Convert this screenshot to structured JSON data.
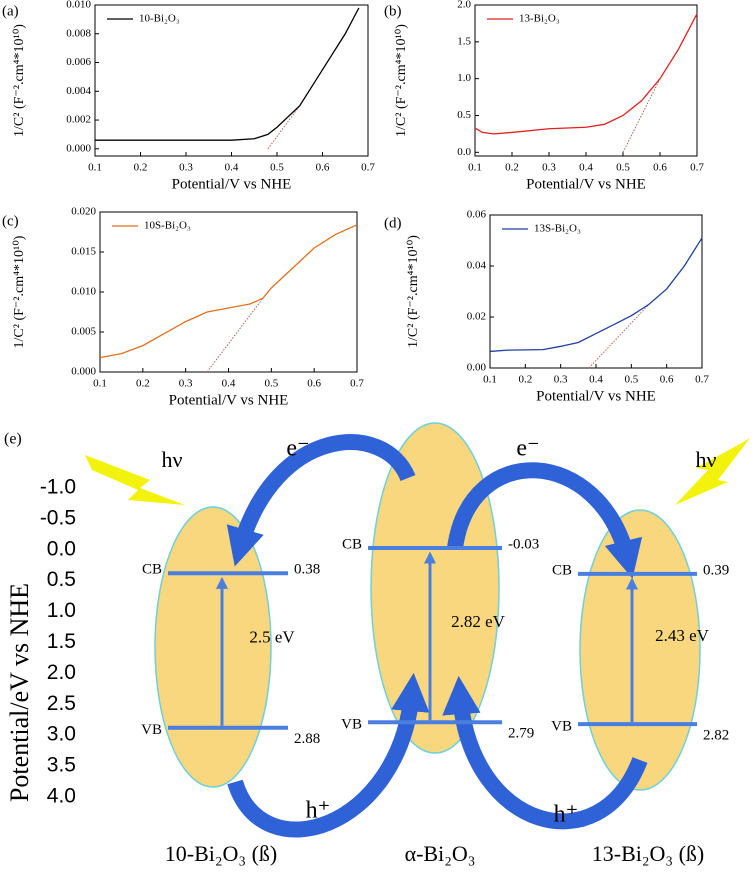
{
  "chart_data": [
    {
      "type": "line",
      "panel": "(a)",
      "xlabel": "Potential/V vs NHE",
      "ylabel": "1/C² (F⁻².cm⁴*10¹⁰)",
      "xlim": [
        0.1,
        0.7
      ],
      "xticks": [
        0.1,
        0.2,
        0.3,
        0.4,
        0.5,
        0.6,
        0.7
      ],
      "ylim": [
        -0.0005,
        0.01
      ],
      "yticks": [
        {
          "value": 0,
          "label": "0.000"
        },
        {
          "value": 0.002,
          "label": "0.002"
        },
        {
          "value": 0.004,
          "label": "0.004"
        },
        {
          "value": 0.006,
          "label": "0.006"
        },
        {
          "value": 0.008,
          "label": "0.008"
        },
        {
          "value": 0.01,
          "label": "0.010"
        }
      ],
      "legend": "upper left",
      "series": [
        {
          "name": "10-Bi₂O₃",
          "color": "#000000",
          "x": [
            0.1,
            0.2,
            0.3,
            0.4,
            0.45,
            0.48,
            0.5,
            0.55,
            0.6,
            0.65,
            0.68
          ],
          "values": [
            0.0006,
            0.0006,
            0.0006,
            0.0006,
            0.0007,
            0.001,
            0.0015,
            0.003,
            0.0055,
            0.008,
            0.0098
          ]
        }
      ],
      "tangent": {
        "color": "#b06060",
        "x": [
          0.48,
          0.55
        ],
        "values": [
          0,
          0.003
        ]
      }
    },
    {
      "type": "line",
      "panel": "(b)",
      "xlabel": "Potential/V vs NHE",
      "ylabel": "1/C² (F⁻².cm⁴*10¹⁰)",
      "xlim": [
        0.1,
        0.7
      ],
      "xticks": [
        0.1,
        0.2,
        0.3,
        0.4,
        0.5,
        0.6,
        0.7
      ],
      "ylim": [
        -0.05,
        2.0
      ],
      "yticks": [
        {
          "value": 0,
          "label": "0.0"
        },
        0.5,
        {
          "value": 1,
          "label": "1.0"
        },
        1.5,
        {
          "value": 2,
          "label": "2.0"
        }
      ],
      "legend": "upper left",
      "series": [
        {
          "name": "13-Bi₂O₃",
          "color": "#e02020",
          "x": [
            0.1,
            0.12,
            0.15,
            0.2,
            0.3,
            0.4,
            0.45,
            0.5,
            0.55,
            0.6,
            0.65,
            0.7
          ],
          "values": [
            0.33,
            0.27,
            0.25,
            0.27,
            0.32,
            0.34,
            0.38,
            0.5,
            0.7,
            1.0,
            1.4,
            1.88
          ]
        }
      ],
      "tangent": {
        "color": "#b06060",
        "x": [
          0.5,
          0.6
        ],
        "values": [
          0,
          1.0
        ]
      }
    },
    {
      "type": "line",
      "panel": "(c)",
      "xlabel": "Potential/V vs NHE",
      "ylabel": "1/C² (F⁻².cm⁴*10¹⁰)",
      "xlim": [
        0.1,
        0.7
      ],
      "xticks": [
        0.1,
        0.2,
        0.3,
        0.4,
        0.5,
        0.6,
        0.7
      ],
      "ylim": [
        0,
        0.02
      ],
      "yticks": [
        {
          "value": 0,
          "label": "0.000"
        },
        0.005,
        {
          "value": 0.01,
          "label": "0.010"
        },
        0.015,
        {
          "value": 0.02,
          "label": "0.020"
        }
      ],
      "legend": "upper left",
      "series": [
        {
          "name": "10S-Bi₂O₃",
          "color": "#e07020",
          "x": [
            0.1,
            0.15,
            0.2,
            0.25,
            0.3,
            0.35,
            0.4,
            0.45,
            0.48,
            0.5,
            0.55,
            0.6,
            0.65,
            0.7
          ],
          "values": [
            0.0018,
            0.0023,
            0.0033,
            0.0048,
            0.0063,
            0.0075,
            0.008,
            0.0085,
            0.0092,
            0.0105,
            0.013,
            0.0155,
            0.0172,
            0.0184
          ]
        }
      ],
      "tangent": {
        "color": "#b06060",
        "x": [
          0.35,
          0.48
        ],
        "values": [
          0,
          0.0092
        ]
      }
    },
    {
      "type": "line",
      "panel": "(d)",
      "xlabel": "Potential/V vs NHE",
      "ylabel": "1/C² (F⁻².cm⁴*10¹⁰)",
      "xlim": [
        0.1,
        0.7
      ],
      "xticks": [
        0.1,
        0.2,
        0.3,
        0.4,
        0.5,
        0.6,
        0.7
      ],
      "ylim": [
        0,
        0.06
      ],
      "yticks": [
        {
          "value": 0,
          "label": "0.00"
        },
        0.02,
        0.04,
        0.06
      ],
      "legend": "upper left",
      "series": [
        {
          "name": "13S-Bi₂O₃",
          "color": "#1f3fa0",
          "x": [
            0.1,
            0.15,
            0.25,
            0.3,
            0.35,
            0.4,
            0.45,
            0.5,
            0.55,
            0.6,
            0.65,
            0.7
          ],
          "values": [
            0.0065,
            0.007,
            0.0072,
            0.0085,
            0.01,
            0.0135,
            0.017,
            0.0205,
            0.025,
            0.031,
            0.04,
            0.051
          ]
        }
      ],
      "tangent": {
        "color": "#b06060",
        "x": [
          0.38,
          0.55
        ],
        "values": [
          0,
          0.025
        ]
      }
    },
    {
      "type": "band",
      "panel": "(e)",
      "ylabel": "Potential/eV vs NHE",
      "invert_y": true,
      "ylim": [
        -1.0,
        4.0
      ],
      "yticks": [
        {
          "value": -1,
          "label": "-1.0"
        },
        -0.5,
        {
          "value": 0,
          "label": "0.0"
        },
        0.5,
        {
          "value": 1,
          "label": "1.0"
        },
        1.5,
        {
          "value": 2,
          "label": "2.0"
        },
        2.5,
        {
          "value": 3,
          "label": "3.0"
        },
        3.5,
        {
          "value": 4,
          "label": "4.0"
        }
      ],
      "categories": [
        "10-Bi₂O₃ (ß)",
        "α-Bi₂O₃",
        "13-Bi₂O₃ (ß)"
      ],
      "series": [
        {
          "name": "CB",
          "color": "#4a7fe0",
          "values": [
            0.38,
            -0.03,
            0.39
          ]
        },
        {
          "name": "VB",
          "color": "#4a7fe0",
          "values": [
            2.88,
            2.79,
            2.82
          ]
        }
      ],
      "gaps": [
        2.5,
        2.82,
        2.43
      ],
      "gap_labels": [
        "2.5 eV",
        "2.82 eV",
        "2.43 eV"
      ],
      "annotations": {
        "electron": "e⁻",
        "hole": "h⁺",
        "photon": "hν"
      }
    }
  ]
}
